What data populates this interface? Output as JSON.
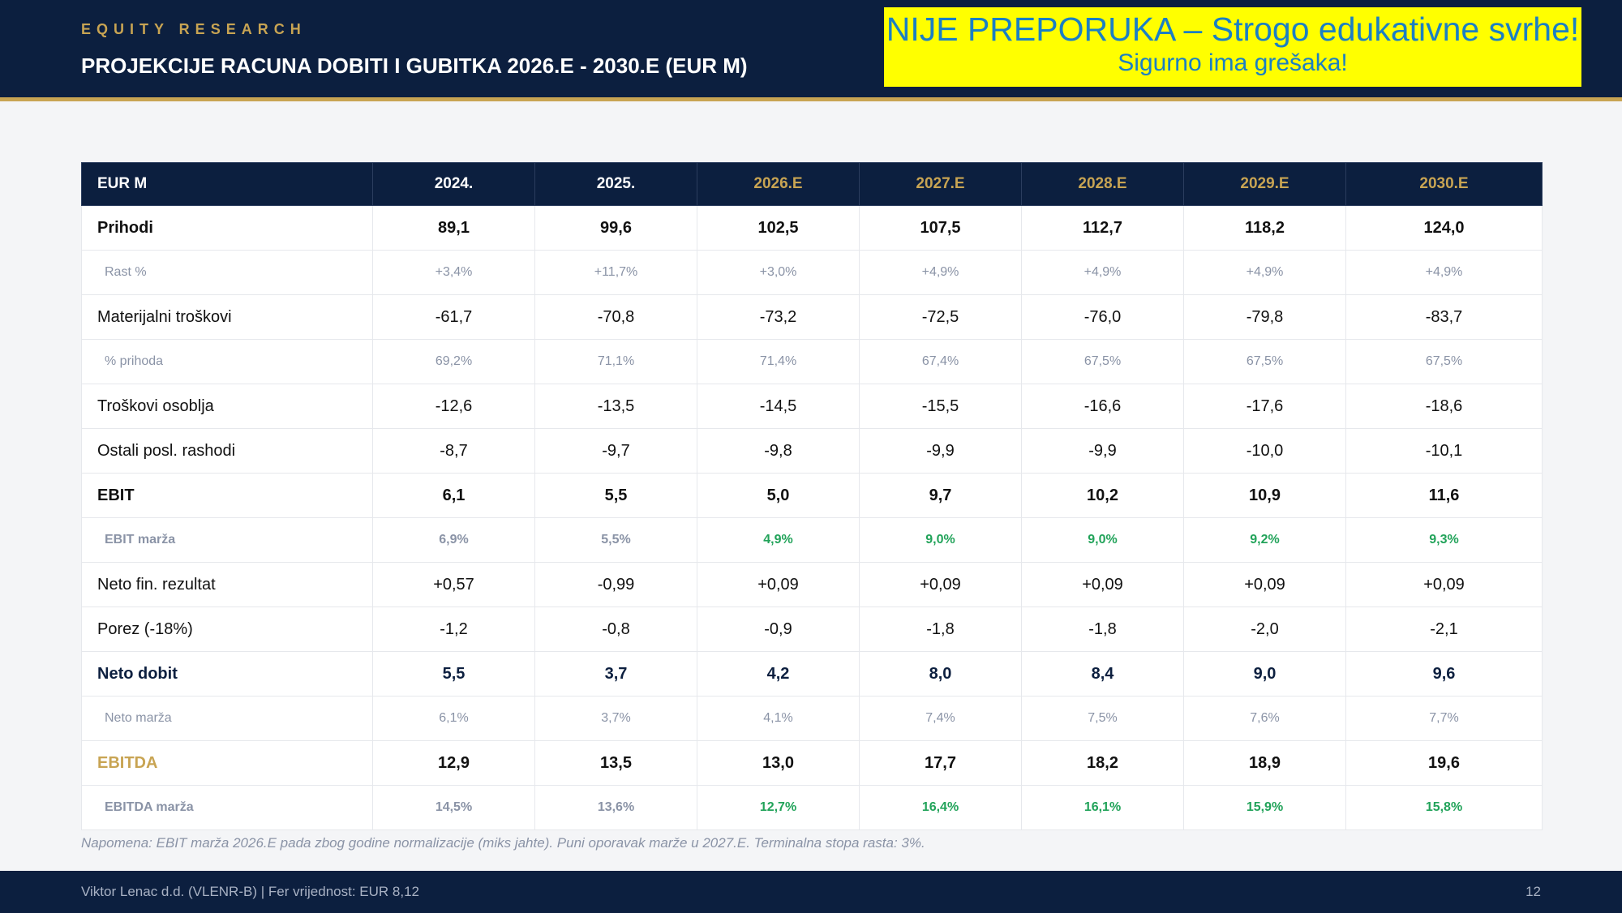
{
  "header": {
    "eyebrow": "EQUITY RESEARCH",
    "title": "PROJEKCIJE RACUNA DOBITI I GUBITKA 2026.E - 2030.E (EUR M)"
  },
  "warning": {
    "line1": "NIJE PREPORUKA – Strogo edukativne svrhe!",
    "line2": "Sigurno ima grešaka!"
  },
  "table": {
    "columns": [
      "EUR M",
      "2024.",
      "2025.",
      "2026.E",
      "2027.E",
      "2028.E",
      "2029.E",
      "2030.E"
    ],
    "rows": [
      {
        "label": "Prihodi",
        "values": [
          "89,1",
          "99,6",
          "102,5",
          "107,5",
          "112,7",
          "118,2",
          "124,0"
        ]
      },
      {
        "label": "Rast %",
        "values": [
          "+3,4%",
          "+11,7%",
          "+3,0%",
          "+4,9%",
          "+4,9%",
          "+4,9%",
          "+4,9%"
        ]
      },
      {
        "label": "Materijalni troškovi",
        "values": [
          "-61,7",
          "-70,8",
          "-73,2",
          "-72,5",
          "-76,0",
          "-79,8",
          "-83,7"
        ]
      },
      {
        "label": "% prihoda",
        "values": [
          "69,2%",
          "71,1%",
          "71,4%",
          "67,4%",
          "67,5%",
          "67,5%",
          "67,5%"
        ]
      },
      {
        "label": "Troškovi osoblja",
        "values": [
          "-12,6",
          "-13,5",
          "-14,5",
          "-15,5",
          "-16,6",
          "-17,6",
          "-18,6"
        ]
      },
      {
        "label": "Ostali posl. rashodi",
        "values": [
          "-8,7",
          "-9,7",
          "-9,8",
          "-9,9",
          "-9,9",
          "-10,0",
          "-10,1"
        ]
      },
      {
        "label": "EBIT",
        "values": [
          "6,1",
          "5,5",
          "5,0",
          "9,7",
          "10,2",
          "10,9",
          "11,6"
        ]
      },
      {
        "label": "EBIT marža",
        "values": [
          "6,9%",
          "5,5%",
          "4,9%",
          "9,0%",
          "9,0%",
          "9,2%",
          "9,3%"
        ]
      },
      {
        "label": "Neto fin. rezultat",
        "values": [
          "+0,57",
          "-0,99",
          "+0,09",
          "+0,09",
          "+0,09",
          "+0,09",
          "+0,09"
        ]
      },
      {
        "label": "Porez (-18%)",
        "values": [
          "-1,2",
          "-0,8",
          "-0,9",
          "-1,8",
          "-1,8",
          "-2,0",
          "-2,1"
        ]
      },
      {
        "label": "Neto dobit",
        "values": [
          "5,5",
          "3,7",
          "4,2",
          "8,0",
          "8,4",
          "9,0",
          "9,6"
        ]
      },
      {
        "label": "Neto marža",
        "values": [
          "6,1%",
          "3,7%",
          "4,1%",
          "7,4%",
          "7,5%",
          "7,6%",
          "7,7%"
        ]
      },
      {
        "label": "EBITDA",
        "values": [
          "12,9",
          "13,5",
          "13,0",
          "17,7",
          "18,2",
          "18,9",
          "19,6"
        ]
      },
      {
        "label": "EBITDA marža",
        "values": [
          "14,5%",
          "13,6%",
          "12,7%",
          "16,4%",
          "16,1%",
          "15,9%",
          "15,8%"
        ]
      }
    ]
  },
  "colors": {
    "navy": "#0c1f3f",
    "gold": "#c8a453",
    "green": "#22a35a",
    "muted": "#8a93a6",
    "warning_bg": "#ffff00",
    "warning_text": "#1b7fc4"
  },
  "note": "Napomena: EBIT marža 2026.E pada zbog godine normalizacije (miks jahte). Puni oporavak marže u 2027.E. Terminalna stopa rasta: 3%.",
  "footer": {
    "left": "Viktor Lenac d.d. (VLENR-B)  |  Fer vrijednost: EUR 8,12",
    "page": "12"
  }
}
